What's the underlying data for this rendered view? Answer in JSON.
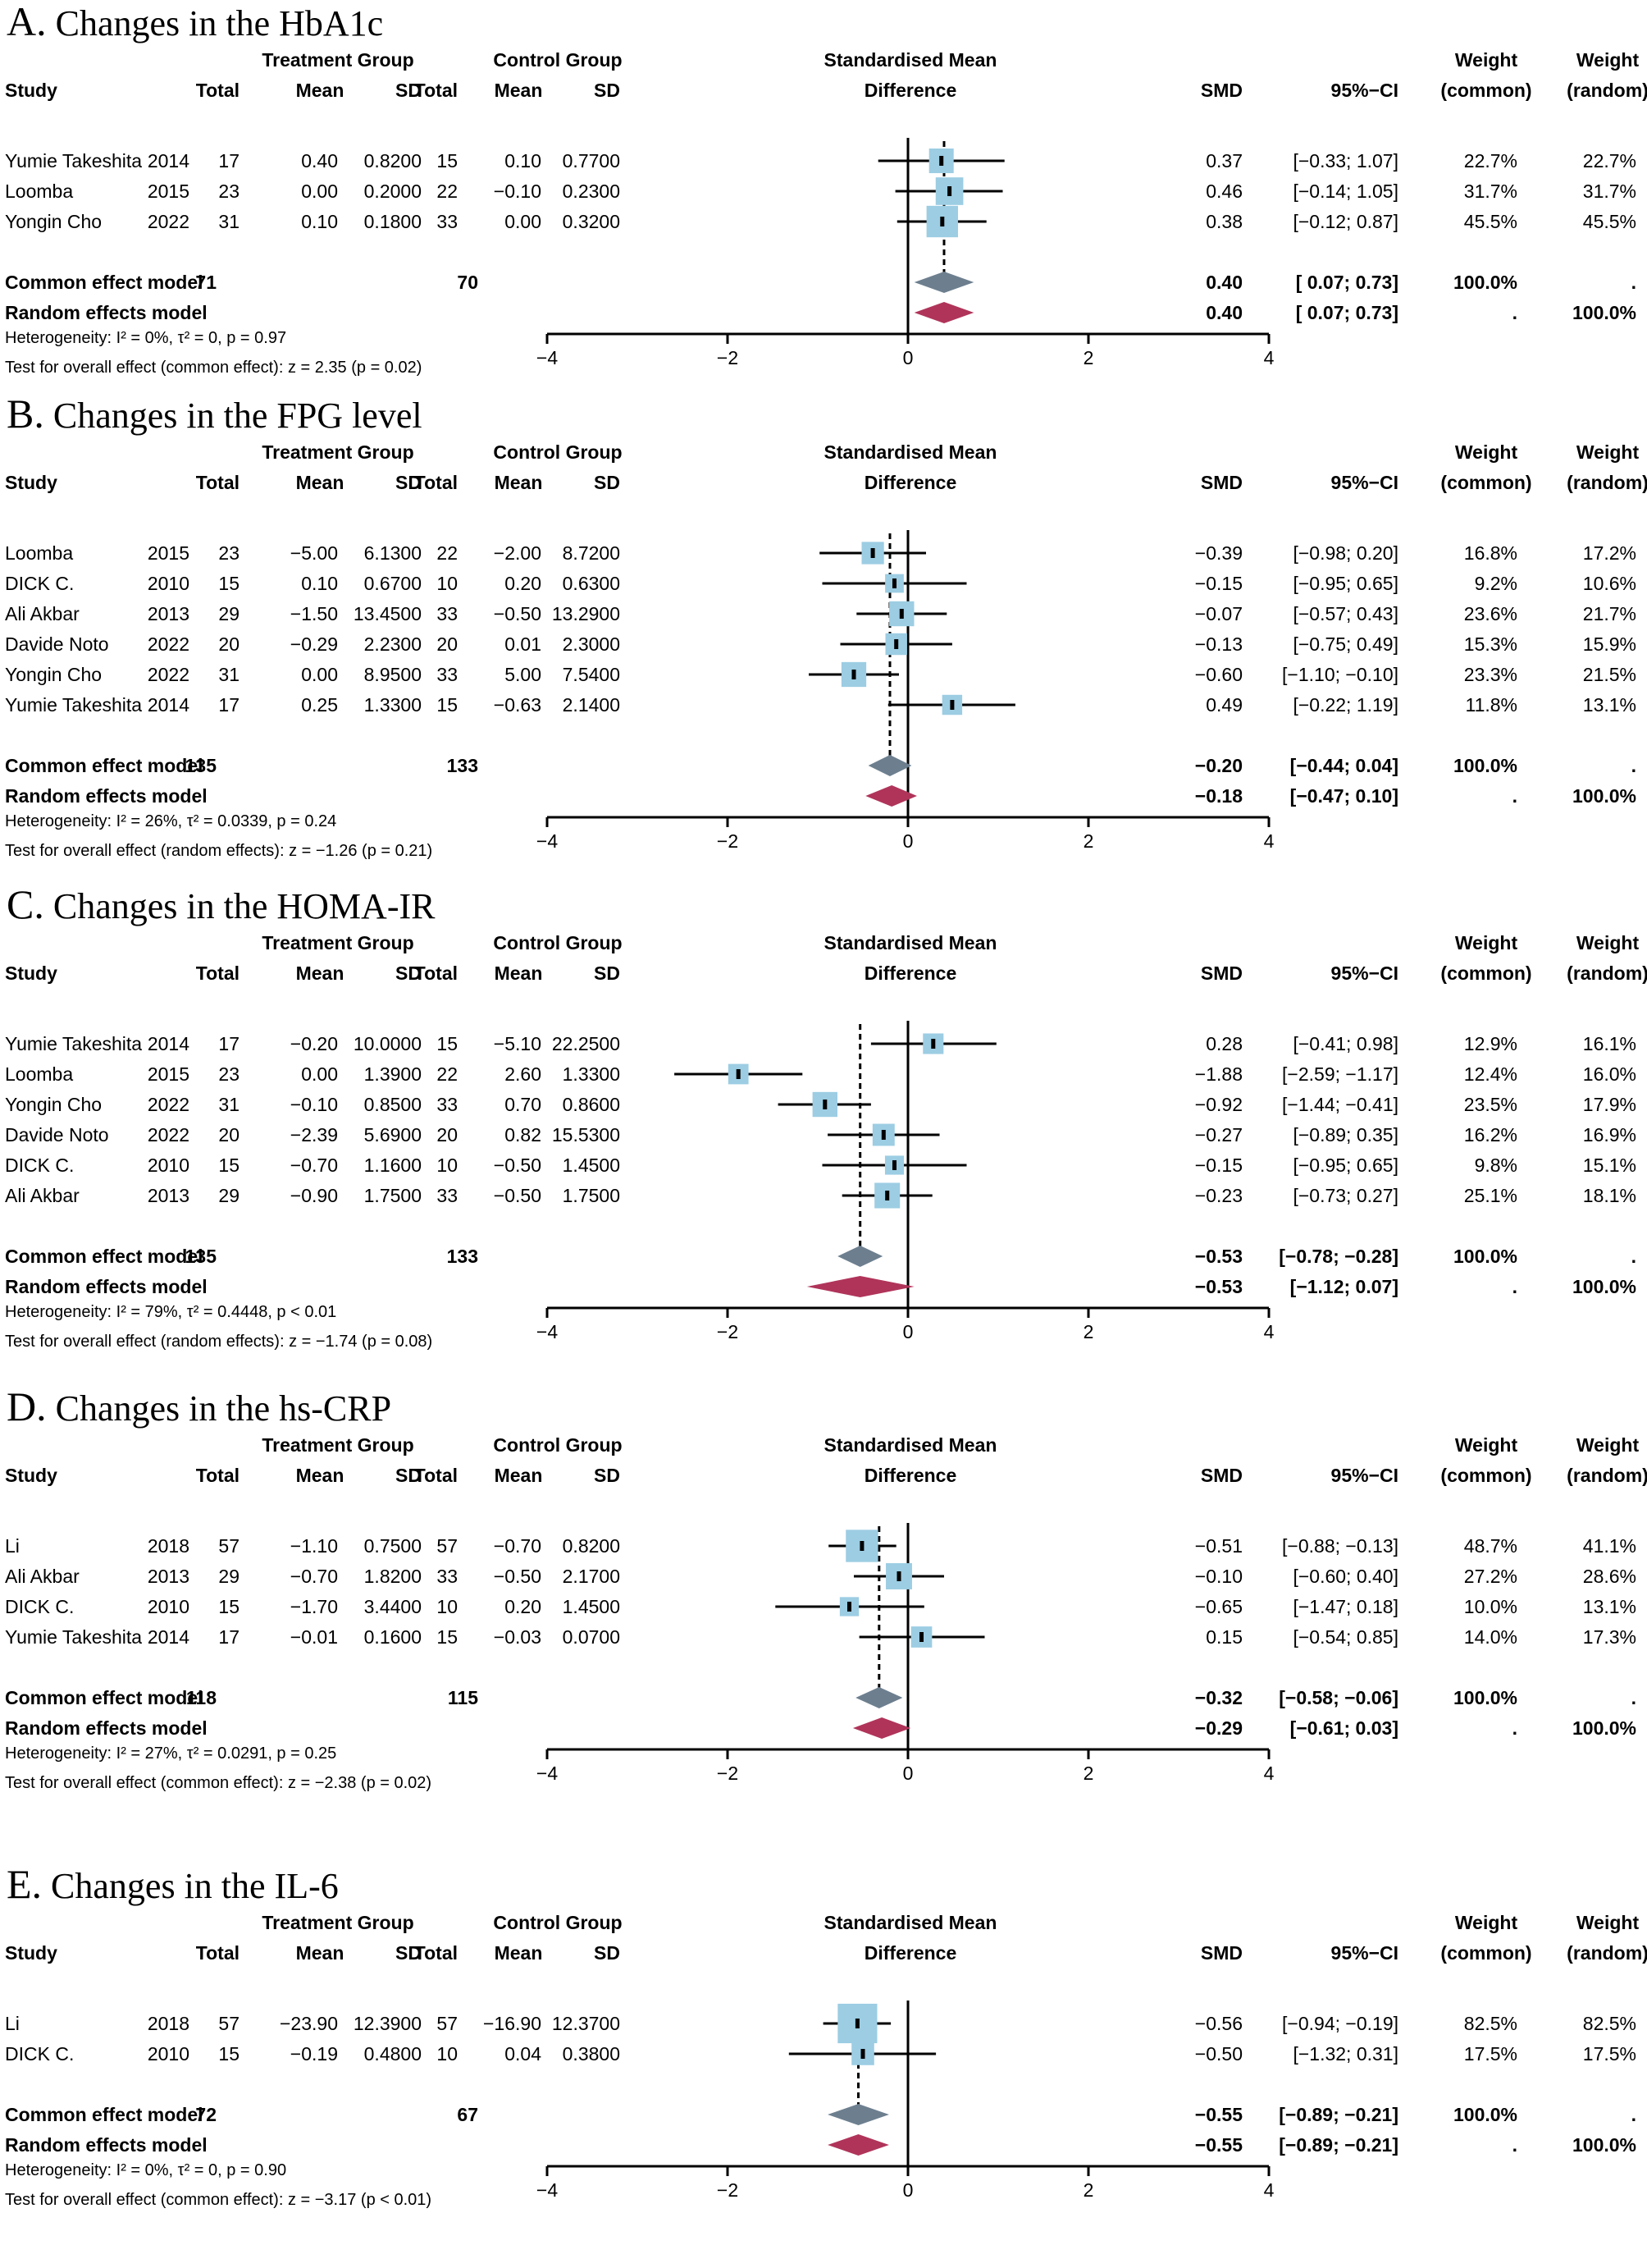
{
  "headers": {
    "treatment": "Treatment Group",
    "control": "Control Group",
    "smd_title": "Standardised Mean",
    "smd_title2": "Difference",
    "study": "Study",
    "total": "Total",
    "mean": "Mean",
    "sd": "SD",
    "smd": "SMD",
    "ci": "95%−CI",
    "weight": "Weight",
    "common": "(common)",
    "random": "(random)",
    "common_model": "Common effect model",
    "random_model": "Random effects model"
  },
  "colors": {
    "square": "#9ccde3",
    "common_diamond": "#6d7f8f",
    "random_diamond": "#b0345a",
    "line": "#000000"
  },
  "chart_data": [
    {
      "type": "forest",
      "letter": "A.",
      "title": "Changes in the HbA1c",
      "xlim": [
        -4,
        4
      ],
      "ticks": [
        "−4",
        "−2",
        "0",
        "2",
        "4"
      ],
      "tick_values": [
        -4,
        -2,
        0,
        2,
        4
      ],
      "studies": [
        {
          "name": "Yumie Takeshita",
          "year": "2014",
          "t_total": "17",
          "t_mean": "0.40",
          "t_sd": "0.8200",
          "c_total": "15",
          "c_mean": "0.10",
          "c_sd": "0.7700",
          "smd": 0.37,
          "lo": -0.33,
          "hi": 1.07,
          "smd_text": "0.37",
          "ci_text": "[−0.33; 1.07]",
          "w_common": "22.7%",
          "w_random": "22.7%",
          "w": 22.7
        },
        {
          "name": "Loomba",
          "year": "2015",
          "t_total": "23",
          "t_mean": "0.00",
          "t_sd": "0.2000",
          "c_total": "22",
          "c_mean": "−0.10",
          "c_sd": "0.2300",
          "smd": 0.46,
          "lo": -0.14,
          "hi": 1.05,
          "smd_text": "0.46",
          "ci_text": "[−0.14; 1.05]",
          "w_common": "31.7%",
          "w_random": "31.7%",
          "w": 31.7
        },
        {
          "name": "Yongin Cho",
          "year": "2022",
          "t_total": "31",
          "t_mean": "0.10",
          "t_sd": "0.1800",
          "c_total": "33",
          "c_mean": "0.00",
          "c_sd": "0.3200",
          "smd": 0.38,
          "lo": -0.12,
          "hi": 0.87,
          "smd_text": "0.38",
          "ci_text": "[−0.12; 0.87]",
          "w_common": "45.5%",
          "w_random": "45.5%",
          "w": 45.5
        }
      ],
      "common": {
        "t_total": "71",
        "c_total": "70",
        "smd": 0.4,
        "lo": 0.07,
        "hi": 0.73,
        "smd_text": "0.40",
        "ci_text": "[ 0.07; 0.73]",
        "w_common": "100.0%",
        "w_random": "."
      },
      "random": {
        "smd": 0.4,
        "lo": 0.07,
        "hi": 0.73,
        "smd_text": "0.40",
        "ci_text": "[ 0.07; 0.73]",
        "w_common": ".",
        "w_random": "100.0%"
      },
      "heterogeneity": "Heterogeneity: I² = 0%, τ² = 0, p = 0.97",
      "test": "Test for overall effect (common effect): z = 2.35 (p = 0.02)"
    },
    {
      "type": "forest",
      "letter": "B.",
      "title": "Changes in the FPG level",
      "xlim": [
        -4,
        4
      ],
      "ticks": [
        "−4",
        "−2",
        "0",
        "2",
        "4"
      ],
      "tick_values": [
        -4,
        -2,
        0,
        2,
        4
      ],
      "studies": [
        {
          "name": "Loomba",
          "year": "2015",
          "t_total": "23",
          "t_mean": "−5.00",
          "t_sd": "6.1300",
          "c_total": "22",
          "c_mean": "−2.00",
          "c_sd": "8.7200",
          "smd": -0.39,
          "lo": -0.98,
          "hi": 0.2,
          "smd_text": "−0.39",
          "ci_text": "[−0.98; 0.20]",
          "w_common": "16.8%",
          "w_random": "17.2%",
          "w": 16.8
        },
        {
          "name": "DICK C.",
          "year": "2010",
          "t_total": "15",
          "t_mean": "0.10",
          "t_sd": "0.6700",
          "c_total": "10",
          "c_mean": "0.20",
          "c_sd": "0.6300",
          "smd": -0.15,
          "lo": -0.95,
          "hi": 0.65,
          "smd_text": "−0.15",
          "ci_text": "[−0.95; 0.65]",
          "w_common": "9.2%",
          "w_random": "10.6%",
          "w": 9.2
        },
        {
          "name": "Ali Akbar",
          "year": "2013",
          "t_total": "29",
          "t_mean": "−1.50",
          "t_sd": "13.4500",
          "c_total": "33",
          "c_mean": "−0.50",
          "c_sd": "13.2900",
          "smd": -0.07,
          "lo": -0.57,
          "hi": 0.43,
          "smd_text": "−0.07",
          "ci_text": "[−0.57; 0.43]",
          "w_common": "23.6%",
          "w_random": "21.7%",
          "w": 23.6
        },
        {
          "name": "Davide Noto",
          "year": "2022",
          "t_total": "20",
          "t_mean": "−0.29",
          "t_sd": "2.2300",
          "c_total": "20",
          "c_mean": "0.01",
          "c_sd": "2.3000",
          "smd": -0.13,
          "lo": -0.75,
          "hi": 0.49,
          "smd_text": "−0.13",
          "ci_text": "[−0.75; 0.49]",
          "w_common": "15.3%",
          "w_random": "15.9%",
          "w": 15.3
        },
        {
          "name": "Yongin Cho",
          "year": "2022",
          "t_total": "31",
          "t_mean": "0.00",
          "t_sd": "8.9500",
          "c_total": "33",
          "c_mean": "5.00",
          "c_sd": "7.5400",
          "smd": -0.6,
          "lo": -1.1,
          "hi": -0.1,
          "smd_text": "−0.60",
          "ci_text": "[−1.10; −0.10]",
          "w_common": "23.3%",
          "w_random": "21.5%",
          "w": 23.3
        },
        {
          "name": "Yumie Takeshita",
          "year": "2014",
          "t_total": "17",
          "t_mean": "0.25",
          "t_sd": "1.3300",
          "c_total": "15",
          "c_mean": "−0.63",
          "c_sd": "2.1400",
          "smd": 0.49,
          "lo": -0.22,
          "hi": 1.19,
          "smd_text": "0.49",
          "ci_text": "[−0.22; 1.19]",
          "w_common": "11.8%",
          "w_random": "13.1%",
          "w": 11.8
        }
      ],
      "common": {
        "t_total": "135",
        "c_total": "133",
        "smd": -0.2,
        "lo": -0.44,
        "hi": 0.04,
        "smd_text": "−0.20",
        "ci_text": "[−0.44; 0.04]",
        "w_common": "100.0%",
        "w_random": "."
      },
      "random": {
        "smd": -0.18,
        "lo": -0.47,
        "hi": 0.1,
        "smd_text": "−0.18",
        "ci_text": "[−0.47; 0.10]",
        "w_common": ".",
        "w_random": "100.0%"
      },
      "heterogeneity": "Heterogeneity: I² = 26%, τ² = 0.0339, p = 0.24",
      "test": "Test for overall effect (random effects): z = −1.26 (p = 0.21)"
    },
    {
      "type": "forest",
      "letter": "C.",
      "title": "Changes in the HOMA-IR",
      "xlim": [
        -4,
        4
      ],
      "ticks": [
        "−4",
        "−2",
        "0",
        "2",
        "4"
      ],
      "tick_values": [
        -4,
        -2,
        0,
        2,
        4
      ],
      "studies": [
        {
          "name": "Yumie Takeshita",
          "year": "2014",
          "t_total": "17",
          "t_mean": "−0.20",
          "t_sd": "10.0000",
          "c_total": "15",
          "c_mean": "−5.10",
          "c_sd": "22.2500",
          "smd": 0.28,
          "lo": -0.41,
          "hi": 0.98,
          "smd_text": "0.28",
          "ci_text": "[−0.41; 0.98]",
          "w_common": "12.9%",
          "w_random": "16.1%",
          "w": 12.9
        },
        {
          "name": "Loomba",
          "year": "2015",
          "t_total": "23",
          "t_mean": "0.00",
          "t_sd": "1.3900",
          "c_total": "22",
          "c_mean": "2.60",
          "c_sd": "1.3300",
          "smd": -1.88,
          "lo": -2.59,
          "hi": -1.17,
          "smd_text": "−1.88",
          "ci_text": "[−2.59; −1.17]",
          "w_common": "12.4%",
          "w_random": "16.0%",
          "w": 12.4
        },
        {
          "name": "Yongin Cho",
          "year": "2022",
          "t_total": "31",
          "t_mean": "−0.10",
          "t_sd": "0.8500",
          "c_total": "33",
          "c_mean": "0.70",
          "c_sd": "0.8600",
          "smd": -0.92,
          "lo": -1.44,
          "hi": -0.41,
          "smd_text": "−0.92",
          "ci_text": "[−1.44; −0.41]",
          "w_common": "23.5%",
          "w_random": "17.9%",
          "w": 23.5
        },
        {
          "name": "Davide Noto",
          "year": "2022",
          "t_total": "20",
          "t_mean": "−2.39",
          "t_sd": "5.6900",
          "c_total": "20",
          "c_mean": "0.82",
          "c_sd": "15.5300",
          "smd": -0.27,
          "lo": -0.89,
          "hi": 0.35,
          "smd_text": "−0.27",
          "ci_text": "[−0.89; 0.35]",
          "w_common": "16.2%",
          "w_random": "16.9%",
          "w": 16.2
        },
        {
          "name": "DICK C.",
          "year": "2010",
          "t_total": "15",
          "t_mean": "−0.70",
          "t_sd": "1.1600",
          "c_total": "10",
          "c_mean": "−0.50",
          "c_sd": "1.4500",
          "smd": -0.15,
          "lo": -0.95,
          "hi": 0.65,
          "smd_text": "−0.15",
          "ci_text": "[−0.95; 0.65]",
          "w_common": "9.8%",
          "w_random": "15.1%",
          "w": 9.8
        },
        {
          "name": "Ali Akbar",
          "year": "2013",
          "t_total": "29",
          "t_mean": "−0.90",
          "t_sd": "1.7500",
          "c_total": "33",
          "c_mean": "−0.50",
          "c_sd": "1.7500",
          "smd": -0.23,
          "lo": -0.73,
          "hi": 0.27,
          "smd_text": "−0.23",
          "ci_text": "[−0.73; 0.27]",
          "w_common": "25.1%",
          "w_random": "18.1%",
          "w": 25.1
        }
      ],
      "common": {
        "t_total": "135",
        "c_total": "133",
        "smd": -0.53,
        "lo": -0.78,
        "hi": -0.28,
        "smd_text": "−0.53",
        "ci_text": "[−0.78; −0.28]",
        "w_common": "100.0%",
        "w_random": "."
      },
      "random": {
        "smd": -0.53,
        "lo": -1.12,
        "hi": 0.07,
        "smd_text": "−0.53",
        "ci_text": "[−1.12; 0.07]",
        "w_common": ".",
        "w_random": "100.0%"
      },
      "heterogeneity": "Heterogeneity: I² = 79%, τ² = 0.4448, p < 0.01",
      "test": "Test for overall effect (random effects): z = −1.74 (p = 0.08)"
    },
    {
      "type": "forest",
      "letter": "D.",
      "title": "Changes in the hs-CRP",
      "xlim": [
        -4,
        4
      ],
      "ticks": [
        "−4",
        "−2",
        "0",
        "2",
        "4"
      ],
      "tick_values": [
        -4,
        -2,
        0,
        2,
        4
      ],
      "studies": [
        {
          "name": "Li",
          "year": "2018",
          "t_total": "57",
          "t_mean": "−1.10",
          "t_sd": "0.7500",
          "c_total": "57",
          "c_mean": "−0.70",
          "c_sd": "0.8200",
          "smd": -0.51,
          "lo": -0.88,
          "hi": -0.13,
          "smd_text": "−0.51",
          "ci_text": "[−0.88; −0.13]",
          "w_common": "48.7%",
          "w_random": "41.1%",
          "w": 48.7
        },
        {
          "name": "Ali Akbar",
          "year": "2013",
          "t_total": "29",
          "t_mean": "−0.70",
          "t_sd": "1.8200",
          "c_total": "33",
          "c_mean": "−0.50",
          "c_sd": "2.1700",
          "smd": -0.1,
          "lo": -0.6,
          "hi": 0.4,
          "smd_text": "−0.10",
          "ci_text": "[−0.60; 0.40]",
          "w_common": "27.2%",
          "w_random": "28.6%",
          "w": 27.2
        },
        {
          "name": "DICK C.",
          "year": "2010",
          "t_total": "15",
          "t_mean": "−1.70",
          "t_sd": "3.4400",
          "c_total": "10",
          "c_mean": "0.20",
          "c_sd": "1.4500",
          "smd": -0.65,
          "lo": -1.47,
          "hi": 0.18,
          "smd_text": "−0.65",
          "ci_text": "[−1.47; 0.18]",
          "w_common": "10.0%",
          "w_random": "13.1%",
          "w": 10.0
        },
        {
          "name": "Yumie Takeshita",
          "year": "2014",
          "t_total": "17",
          "t_mean": "−0.01",
          "t_sd": "0.1600",
          "c_total": "15",
          "c_mean": "−0.03",
          "c_sd": "0.0700",
          "smd": 0.15,
          "lo": -0.54,
          "hi": 0.85,
          "smd_text": "0.15",
          "ci_text": "[−0.54; 0.85]",
          "w_common": "14.0%",
          "w_random": "17.3%",
          "w": 14.0
        }
      ],
      "common": {
        "t_total": "118",
        "c_total": "115",
        "smd": -0.32,
        "lo": -0.58,
        "hi": -0.06,
        "smd_text": "−0.32",
        "ci_text": "[−0.58; −0.06]",
        "w_common": "100.0%",
        "w_random": "."
      },
      "random": {
        "smd": -0.29,
        "lo": -0.61,
        "hi": 0.03,
        "smd_text": "−0.29",
        "ci_text": "[−0.61; 0.03]",
        "w_common": ".",
        "w_random": "100.0%"
      },
      "heterogeneity": "Heterogeneity: I² = 27%, τ² = 0.0291, p = 0.25",
      "test": "Test for overall effect (common effect): z = −2.38 (p = 0.02)"
    },
    {
      "type": "forest",
      "letter": "E.",
      "title": "Changes in the IL-6",
      "xlim": [
        -4,
        4
      ],
      "ticks": [
        "−4",
        "−2",
        "0",
        "2",
        "4"
      ],
      "tick_values": [
        -4,
        -2,
        0,
        2,
        4
      ],
      "studies": [
        {
          "name": "Li",
          "year": "2018",
          "t_total": "57",
          "t_mean": "−23.90",
          "t_sd": "12.3900",
          "c_total": "57",
          "c_mean": "−16.90",
          "c_sd": "12.3700",
          "smd": -0.56,
          "lo": -0.94,
          "hi": -0.19,
          "smd_text": "−0.56",
          "ci_text": "[−0.94; −0.19]",
          "w_common": "82.5%",
          "w_random": "82.5%",
          "w": 82.5
        },
        {
          "name": "DICK C.",
          "year": "2010",
          "t_total": "15",
          "t_mean": "−0.19",
          "t_sd": "0.4800",
          "c_total": "10",
          "c_mean": "0.04",
          "c_sd": "0.3800",
          "smd": -0.5,
          "lo": -1.32,
          "hi": 0.31,
          "smd_text": "−0.50",
          "ci_text": "[−1.32; 0.31]",
          "w_common": "17.5%",
          "w_random": "17.5%",
          "w": 17.5
        }
      ],
      "common": {
        "t_total": "72",
        "c_total": "67",
        "smd": -0.55,
        "lo": -0.89,
        "hi": -0.21,
        "smd_text": "−0.55",
        "ci_text": "[−0.89; −0.21]",
        "w_common": "100.0%",
        "w_random": "."
      },
      "random": {
        "smd": -0.55,
        "lo": -0.89,
        "hi": -0.21,
        "smd_text": "−0.55",
        "ci_text": "[−0.89; −0.21]",
        "w_common": ".",
        "w_random": "100.0%"
      },
      "heterogeneity": "Heterogeneity: I² = 0%, τ² = 0, p = 0.90",
      "test": "Test for overall effect (common effect): z = −3.17 (p < 0.01)"
    }
  ]
}
